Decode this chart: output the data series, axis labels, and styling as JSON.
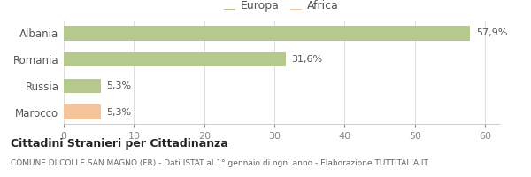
{
  "categories": [
    "Albania",
    "Romania",
    "Russia",
    "Marocco"
  ],
  "values": [
    57.9,
    31.6,
    5.3,
    5.3
  ],
  "labels": [
    "57,9%",
    "31,6%",
    "5,3%",
    "5,3%"
  ],
  "bar_colors": [
    "#b5c98e",
    "#b5c98e",
    "#b5c98e",
    "#f5c49a"
  ],
  "legend_items": [
    {
      "label": "Europa",
      "color": "#b5c98e"
    },
    {
      "label": "Africa",
      "color": "#f5c49a"
    }
  ],
  "xlim": [
    0,
    62
  ],
  "xticks": [
    0,
    10,
    20,
    30,
    40,
    50,
    60
  ],
  "title": "Cittadini Stranieri per Cittadinanza",
  "subtitle": "COMUNE DI COLLE SAN MAGNO (FR) - Dati ISTAT al 1° gennaio di ogni anno - Elaborazione TUTTITALIA.IT",
  "background_color": "#ffffff",
  "bar_height": 0.55
}
